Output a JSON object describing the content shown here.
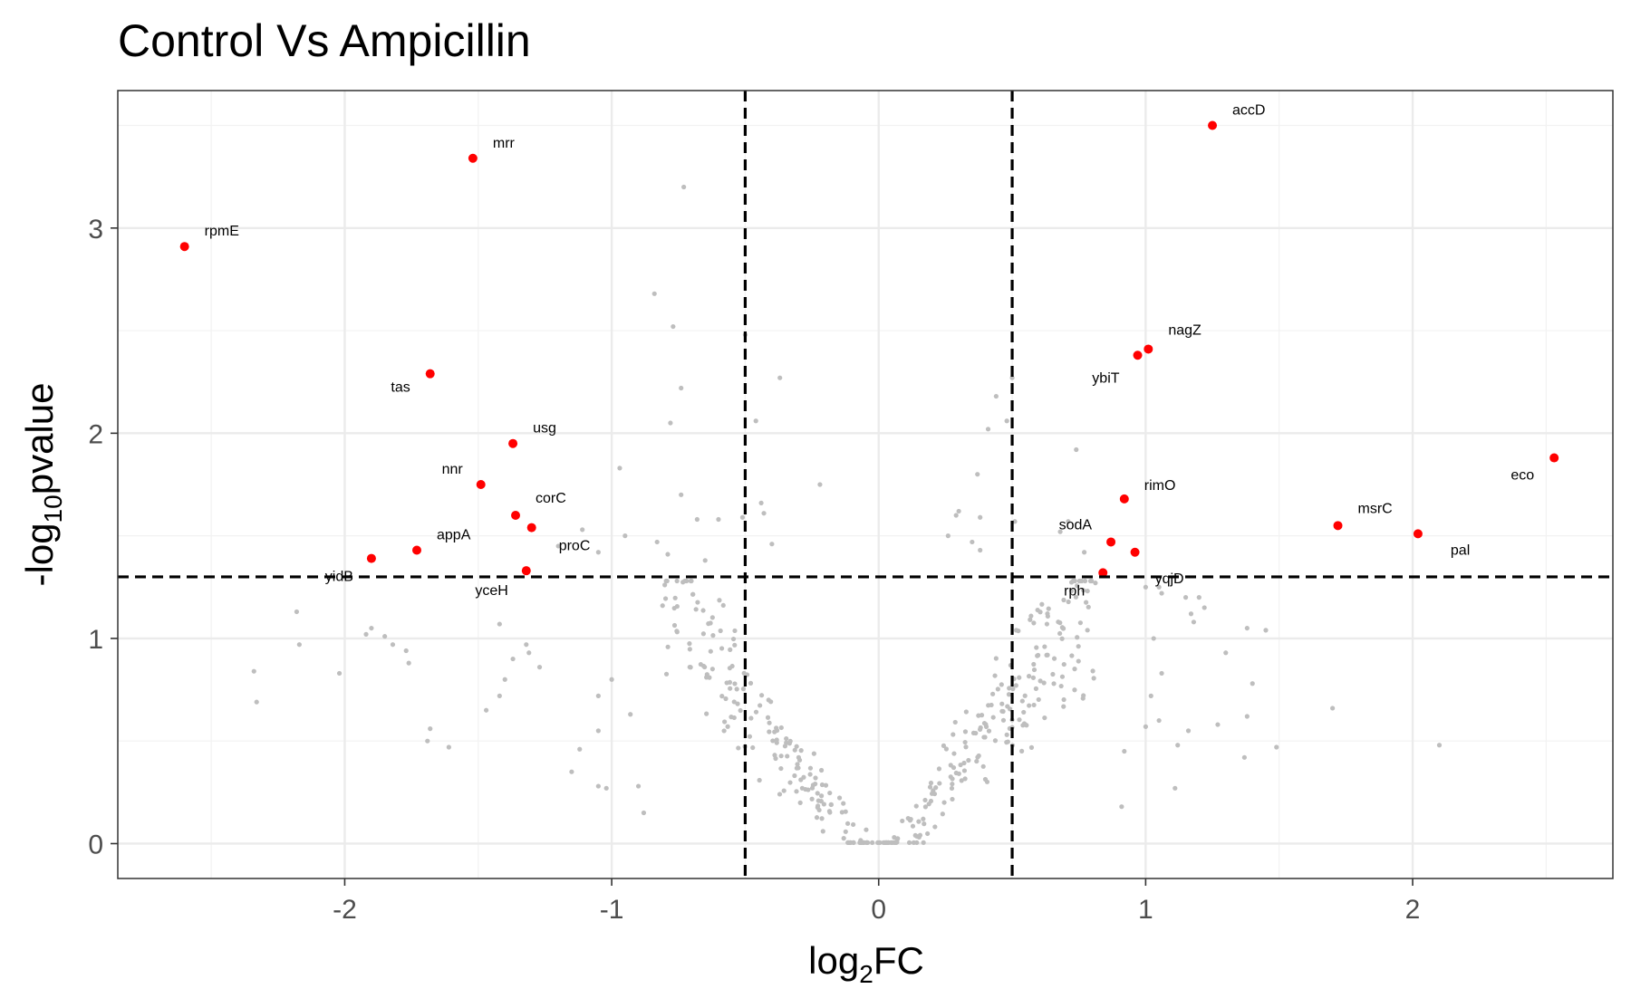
{
  "chart_data": {
    "type": "scatter",
    "title": "Control Vs Ampicillin",
    "xlabel": {
      "base": "log",
      "sub": "2",
      "rest": "FC"
    },
    "ylabel": {
      "prefix": "-log",
      "sub": "10",
      "rest": "pvalue"
    },
    "xlim": [
      -2.85,
      2.75
    ],
    "ylim": [
      -0.17,
      3.67
    ],
    "x_ticks": [
      -2,
      -1,
      0,
      1,
      2
    ],
    "x_tick_labels": [
      "-2",
      "-1",
      "0",
      "1",
      "2"
    ],
    "y_ticks": [
      0,
      1,
      2,
      3
    ],
    "y_tick_labels": [
      "0",
      "1",
      "2",
      "3"
    ],
    "grid": true,
    "thresholds": {
      "log2fc": [
        -0.5,
        0.5
      ],
      "neg_log10_p": 1.3
    },
    "colors": {
      "significant": "#ff0000",
      "background": "#bebebe",
      "threshold_line": "#000000"
    },
    "significant": [
      {
        "gene": "accD",
        "x": 1.25,
        "y": 3.5
      },
      {
        "gene": "mrr",
        "x": -1.52,
        "y": 3.34
      },
      {
        "gene": "rpmE",
        "x": -2.6,
        "y": 2.91
      },
      {
        "gene": "nagZ",
        "x": 1.01,
        "y": 2.41
      },
      {
        "gene": "ybiT",
        "x": 0.97,
        "y": 2.38
      },
      {
        "gene": "tas",
        "x": -1.68,
        "y": 2.29
      },
      {
        "gene": "usg",
        "x": -1.37,
        "y": 1.95
      },
      {
        "gene": "eco",
        "x": 2.53,
        "y": 1.88
      },
      {
        "gene": "nnr",
        "x": -1.49,
        "y": 1.75
      },
      {
        "gene": "rimO",
        "x": 0.92,
        "y": 1.68
      },
      {
        "gene": "corC",
        "x": -1.36,
        "y": 1.6
      },
      {
        "gene": "msrC",
        "x": 1.72,
        "y": 1.55
      },
      {
        "gene": "proC",
        "x": -1.3,
        "y": 1.54
      },
      {
        "gene": "pal",
        "x": 2.02,
        "y": 1.51
      },
      {
        "gene": "sodA",
        "x": 0.87,
        "y": 1.47
      },
      {
        "gene": "appA",
        "x": -1.73,
        "y": 1.43
      },
      {
        "gene": "yqjD",
        "x": 0.96,
        "y": 1.42
      },
      {
        "gene": "yidB",
        "x": -1.9,
        "y": 1.39
      },
      {
        "gene": "yceH",
        "x": -1.32,
        "y": 1.33
      },
      {
        "gene": "rph",
        "x": 0.84,
        "y": 1.32
      }
    ],
    "background_points": [
      [
        -0.73,
        3.2
      ],
      [
        -0.84,
        2.68
      ],
      [
        -0.77,
        2.52
      ],
      [
        -0.5,
        2.48
      ],
      [
        -0.74,
        2.22
      ],
      [
        -0.37,
        2.27
      ],
      [
        -0.46,
        2.06
      ],
      [
        -0.78,
        2.05
      ],
      [
        0.5,
        2.27
      ],
      [
        0.44,
        2.18
      ],
      [
        0.41,
        2.02
      ],
      [
        0.48,
        2.06
      ],
      [
        -0.97,
        1.83
      ],
      [
        -0.22,
        1.75
      ],
      [
        0.74,
        1.92
      ],
      [
        0.37,
        1.8
      ],
      [
        -0.74,
        1.7
      ],
      [
        -0.68,
        1.58
      ],
      [
        -0.6,
        1.58
      ],
      [
        -0.51,
        1.59
      ],
      [
        -0.44,
        1.66
      ],
      [
        -0.43,
        1.61
      ],
      [
        -1.11,
        1.53
      ],
      [
        0.29,
        1.6
      ],
      [
        0.3,
        1.62
      ],
      [
        0.38,
        1.59
      ],
      [
        0.51,
        1.57
      ],
      [
        0.71,
        1.57
      ],
      [
        0.68,
        1.52
      ],
      [
        0.77,
        1.42
      ],
      [
        -0.95,
        1.5
      ],
      [
        -0.83,
        1.47
      ],
      [
        -0.79,
        1.41
      ],
      [
        -0.65,
        1.38
      ],
      [
        -0.4,
        1.46
      ],
      [
        0.26,
        1.5
      ],
      [
        0.35,
        1.47
      ],
      [
        0.38,
        1.43
      ],
      [
        -1.2,
        1.45
      ],
      [
        -1.05,
        1.42
      ],
      [
        -2.18,
        1.13
      ],
      [
        -2.17,
        0.97
      ],
      [
        -1.9,
        1.05
      ],
      [
        -1.92,
        1.02
      ],
      [
        -1.85,
        1.01
      ],
      [
        -1.82,
        0.97
      ],
      [
        -1.77,
        0.94
      ],
      [
        -1.76,
        0.88
      ],
      [
        -2.02,
        0.83
      ],
      [
        -2.34,
        0.84
      ],
      [
        -2.33,
        0.69
      ],
      [
        -1.42,
        1.07
      ],
      [
        -1.32,
        0.97
      ],
      [
        -1.31,
        0.93
      ],
      [
        -1.37,
        0.9
      ],
      [
        -1.27,
        0.86
      ],
      [
        -1.42,
        0.72
      ],
      [
        -1.47,
        0.65
      ],
      [
        -1.4,
        0.8
      ],
      [
        -1.0,
        0.8
      ],
      [
        -1.05,
        0.72
      ],
      [
        -0.93,
        0.63
      ],
      [
        -1.05,
        0.55
      ],
      [
        -1.12,
        0.46
      ],
      [
        -1.15,
        0.35
      ],
      [
        -1.05,
        0.28
      ],
      [
        -1.02,
        0.27
      ],
      [
        -0.9,
        0.28
      ],
      [
        -0.88,
        0.15
      ],
      [
        -1.69,
        0.5
      ],
      [
        -1.68,
        0.56
      ],
      [
        -1.61,
        0.47
      ],
      [
        1.15,
        1.2
      ],
      [
        1.2,
        1.2
      ],
      [
        1.22,
        1.15
      ],
      [
        1.17,
        1.12
      ],
      [
        1.18,
        1.08
      ],
      [
        1.38,
        1.05
      ],
      [
        1.45,
        1.04
      ],
      [
        1.3,
        0.93
      ],
      [
        1.4,
        0.78
      ],
      [
        1.7,
        0.66
      ],
      [
        1.38,
        0.62
      ],
      [
        1.27,
        0.58
      ],
      [
        1.16,
        0.55
      ],
      [
        1.12,
        0.48
      ],
      [
        1.37,
        0.42
      ],
      [
        1.49,
        0.47
      ],
      [
        2.1,
        0.48
      ],
      [
        1.11,
        0.27
      ],
      [
        0.91,
        0.18
      ],
      [
        1.05,
        1.25
      ],
      [
        1.0,
        1.25
      ],
      [
        1.06,
        1.22
      ],
      [
        1.03,
        1.0
      ],
      [
        1.06,
        0.83
      ],
      [
        1.02,
        0.72
      ],
      [
        1.05,
        0.6
      ],
      [
        1.0,
        0.57
      ],
      [
        0.92,
        0.45
      ]
    ]
  }
}
